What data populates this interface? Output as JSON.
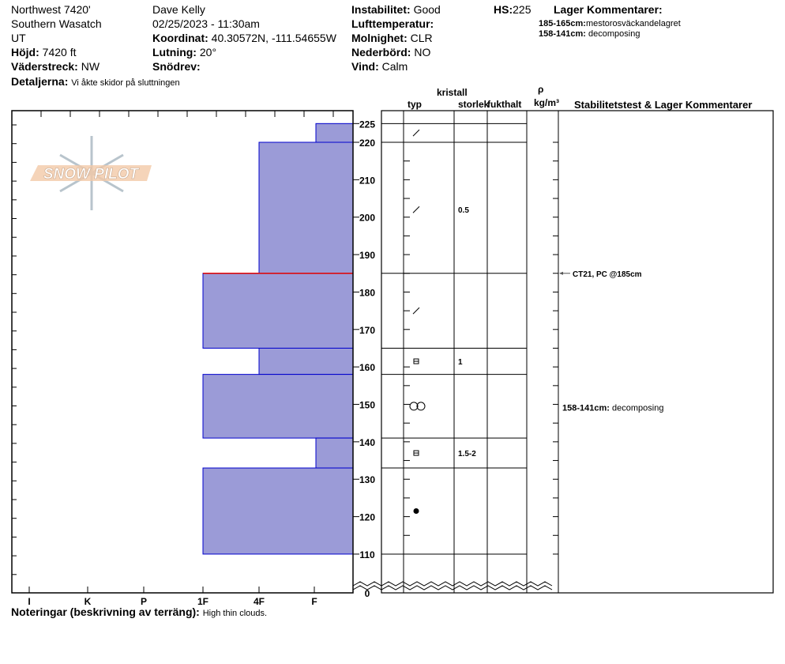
{
  "header": {
    "location": "Northwest 7420'",
    "range": "Southern Wasatch",
    "state": "UT",
    "elevation_label": "Höjd:",
    "elevation": "7420 ft",
    "aspect_label": "Väderstreck:",
    "aspect": "NW",
    "details_label": "Detaljerna:",
    "details": "Vi åkte skidor på sluttningen",
    "observer": "Dave Kelly",
    "datetime": "02/25/2023 - 11:30am",
    "coord_label": "Koordinat:",
    "coord": "40.30572N, -111.54655W",
    "slope_label": "Lutning:",
    "slope": "20°",
    "drift_label": "Snödrev:",
    "drift": "",
    "instability_label": "Instabilitet:",
    "instability": "Good",
    "airtemp_label": "Lufttemperatur:",
    "airtemp": "",
    "sky_label": "Molnighet:",
    "sky": "CLR",
    "precip_label": "Nederbörd:",
    "precip": "NO",
    "wind_label": "Vind:",
    "wind": "Calm",
    "hs_label": "HS:",
    "hs": "225",
    "layer_comments_label": "Lager Kommentarer:",
    "layer_comments": [
      {
        "range": "185-165cm:",
        "text": "mestorosväckandelagret"
      },
      {
        "range": "158-141cm:",
        "text": "decomposing"
      }
    ]
  },
  "columns": {
    "kristall": "kristall",
    "typ": "typ",
    "size": "storlek",
    "moisture": "fukthalt",
    "rho": "ρ",
    "density": "kg/m³",
    "stability": "Stabilitetstest & Lager Kommentarer"
  },
  "footer": {
    "label": "Noteringar (beskrivning av terräng):",
    "text": "High thin clouds."
  },
  "logo_text": "SNOW PILOT",
  "colors": {
    "bar": "#9b9bd7",
    "edge": "#0000cc",
    "test_line": "#e00000"
  },
  "chart_data": {
    "type": "bar",
    "orientation": "horizontal",
    "hardness_ticks": [
      "I",
      "K",
      "P",
      "1F",
      "4F",
      "F"
    ],
    "depth_ticks": [
      225,
      220,
      210,
      200,
      190,
      180,
      170,
      160,
      150,
      140,
      130,
      120,
      110,
      0
    ],
    "ylim": [
      0,
      225
    ],
    "layers": [
      {
        "top": 225,
        "bottom": 220,
        "hardness": "F",
        "crystal": "precipitation-particles",
        "size": ""
      },
      {
        "top": 220,
        "bottom": 185,
        "hardness": "4F",
        "crystal": "precipitation-particles",
        "size": "0.5"
      },
      {
        "top": 185,
        "bottom": 165,
        "hardness": "1F",
        "crystal": "precipitation-particles",
        "size": ""
      },
      {
        "top": 165,
        "bottom": 158,
        "hardness": "4F",
        "crystal": "faceted",
        "size": "1"
      },
      {
        "top": 158,
        "bottom": 141,
        "hardness": "1F",
        "crystal": "rounded-clustered",
        "size": ""
      },
      {
        "top": 141,
        "bottom": 133,
        "hardness": "F",
        "crystal": "faceted",
        "size": "1.5-2"
      },
      {
        "top": 133,
        "bottom": 110,
        "hardness": "1F",
        "crystal": "melt-freeze",
        "size": ""
      }
    ],
    "tests": [
      {
        "depth": 185,
        "label": "CT21, PC @185cm"
      }
    ],
    "comments": [
      {
        "depth": 149,
        "range": "158-141cm:",
        "text": "decomposing"
      }
    ]
  }
}
